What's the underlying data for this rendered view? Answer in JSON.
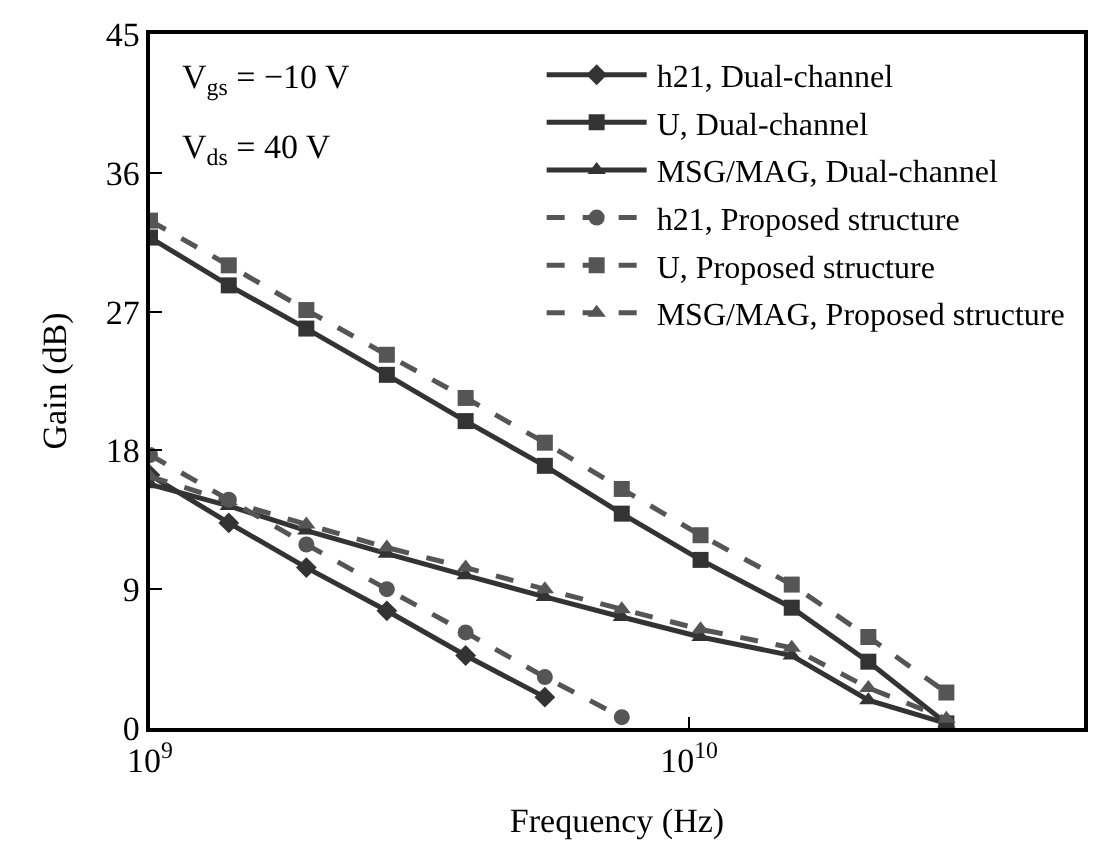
{
  "chart_data": {
    "type": "line",
    "xlabel": "Frequency (Hz)",
    "ylabel": "Gain (dB)",
    "log": "x",
    "legend": "top right",
    "x": [
      1000000000.0,
      1400000000.0,
      1950000000.0,
      2750000000.0,
      3850000000.0,
      5400000000.0,
      7500000000.0,
      10500000000.0,
      15500000000.0,
      21500000000.0,
      30000000000.0
    ],
    "xlim": [
      1000000000.0,
      54000000000.0
    ],
    "xticks": [
      {
        "value": 1000000000.0,
        "label": "10$^{9}$"
      },
      {
        "value": 10000000000.0,
        "label": "10$^{10}$"
      }
    ],
    "ylim": [
      0,
      45
    ],
    "yticks": [
      0,
      9,
      18,
      27,
      36,
      45
    ],
    "annotations": [
      "V$_{gs}$ = −10 V",
      "V$_{ds}$ = 40 V"
    ],
    "series": [
      {
        "name": "h21, Dual-channel",
        "color": "#333333",
        "marker": "diamond",
        "line_style": "solid",
        "values": [
          16.4,
          13.3,
          10.4,
          7.6,
          4.7,
          2.0,
          null,
          null,
          null,
          null,
          null
        ]
      },
      {
        "name": "U, Dual-channel",
        "color": "#333333",
        "marker": "square",
        "line_style": "solid",
        "values": [
          31.8,
          28.7,
          25.9,
          22.9,
          19.9,
          17.0,
          13.9,
          10.9,
          7.8,
          4.3,
          0.3
        ]
      },
      {
        "name": "MSG/MAG, Dual-channel",
        "color": "#333333",
        "marker": "triangle",
        "line_style": "solid",
        "values": [
          15.8,
          14.4,
          12.8,
          11.3,
          9.9,
          8.5,
          7.2,
          5.9,
          4.7,
          1.8,
          0.3
        ]
      },
      {
        "name": "h21, Proposed structure",
        "color": "#555555",
        "marker": "circle",
        "line_style": "dashed",
        "values": [
          17.7,
          14.8,
          11.9,
          9.0,
          6.2,
          3.3,
          0.7,
          null,
          null,
          null,
          null
        ]
      },
      {
        "name": "U, Proposed structure",
        "color": "#555555",
        "marker": "square",
        "line_style": "dashed",
        "values": [
          32.9,
          30.0,
          27.1,
          24.2,
          21.4,
          18.5,
          15.5,
          12.5,
          9.3,
          5.9,
          2.3
        ]
      },
      {
        "name": "MSG/MAG, Proposed structure",
        "color": "#555555",
        "marker": "triangle",
        "line_style": "dashed",
        "values": [
          16.3,
          14.7,
          13.2,
          11.7,
          10.4,
          9.0,
          7.7,
          6.4,
          5.2,
          2.6,
          0.6
        ]
      }
    ]
  }
}
